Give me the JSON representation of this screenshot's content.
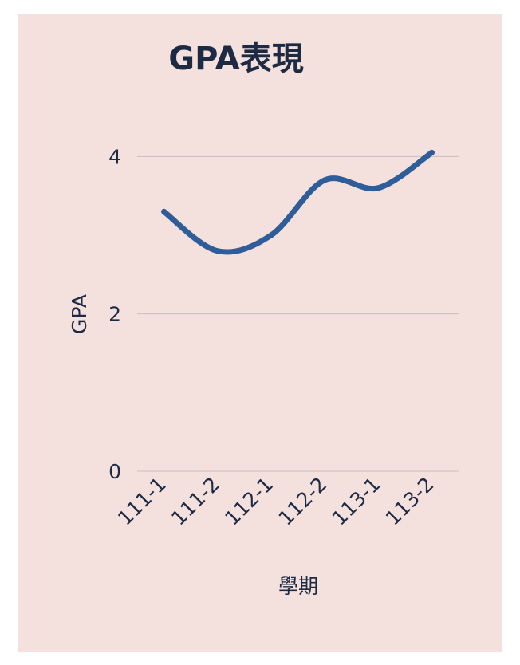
{
  "colors": {
    "background": "#f4e0dd",
    "text": "#1c2a44",
    "line": "#2e5d99",
    "grid": "#c9bfbd"
  },
  "chart_data": {
    "type": "line",
    "title": "GPA表現",
    "xlabel": "學期",
    "ylabel": "GPA",
    "categories": [
      "111-1",
      "111-2",
      "112-1",
      "112-2",
      "113-1",
      "113-2"
    ],
    "series": [
      {
        "values": [
          3.3,
          2.8,
          3.0,
          3.7,
          3.6,
          4.05
        ]
      }
    ],
    "ylim": [
      0,
      4.5
    ],
    "yticks": [
      0,
      2,
      4
    ],
    "grid": true,
    "legend": "none"
  }
}
